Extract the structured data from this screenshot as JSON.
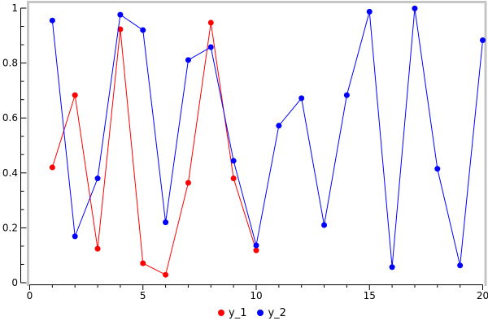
{
  "chart_data": {
    "type": "line",
    "title": "",
    "xlabel": "",
    "ylabel": "",
    "xlim": [
      0,
      20
    ],
    "ylim": [
      0,
      1
    ],
    "x_ticks": [
      0,
      5,
      10,
      15,
      20
    ],
    "x_tick_labels": [
      "0",
      "5",
      "10",
      "15",
      "20"
    ],
    "x_minor_tick_step": 1,
    "y_ticks": [
      0,
      0.2,
      0.4,
      0.6,
      0.8,
      1
    ],
    "y_tick_labels": [
      "0",
      "0.2",
      "0.4",
      "0.6",
      "0.8",
      "1"
    ],
    "y_minor_ticks_between_major": 2,
    "grid": false,
    "legend_position": "bottom-center",
    "marker": "filled-circle",
    "series": [
      {
        "name": "y_1",
        "color": "#ff0000",
        "x": [
          1,
          2,
          3,
          4,
          5,
          6,
          7,
          8,
          9,
          10
        ],
        "values": [
          0.42,
          0.683,
          0.124,
          0.923,
          0.071,
          0.029,
          0.364,
          0.947,
          0.38,
          0.118
        ]
      },
      {
        "name": "y_2",
        "color": "#0000ff",
        "x": [
          1,
          2,
          3,
          4,
          5,
          6,
          7,
          8,
          9,
          10,
          11,
          12,
          13,
          14,
          15,
          16,
          17,
          18,
          19,
          20
        ],
        "values": [
          0.955,
          0.169,
          0.38,
          0.976,
          0.92,
          0.22,
          0.811,
          0.858,
          0.444,
          0.136,
          0.572,
          0.672,
          0.21,
          0.683,
          0.987,
          0.057,
          0.999,
          0.415,
          0.063,
          0.883
        ]
      }
    ],
    "colors": {
      "axis": "#000000",
      "tick_label": "#000000",
      "frame": "#c6c6c6",
      "background": "#ffffff"
    }
  }
}
